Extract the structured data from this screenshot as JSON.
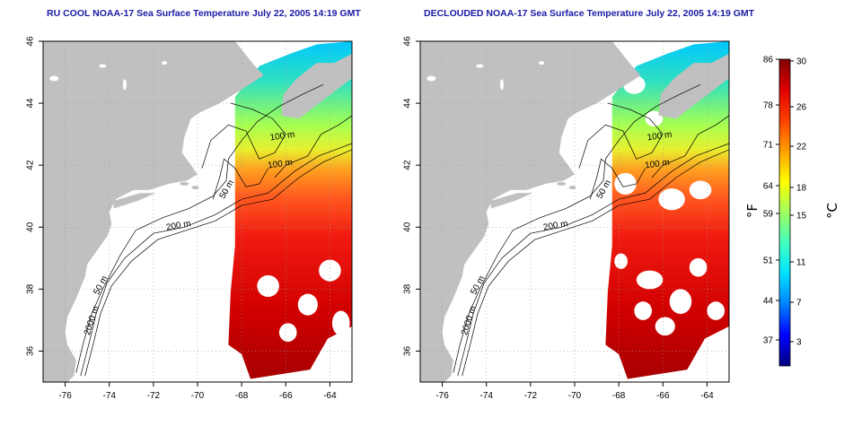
{
  "panels": [
    {
      "title": "RU COOL NOAA-17 Sea Surface Temperature July 22, 2005 14:19 GMT",
      "contour_labels": [
        "100 m",
        "100 m",
        "50 m",
        "200 m",
        "50 m",
        "2000 m"
      ]
    },
    {
      "title": "DECLOUDED NOAA-17 Sea Surface Temperature July 22, 2005 14:19 GMT",
      "contour_labels": [
        "100 m",
        "100 m",
        "50 m",
        "200 m",
        "50 m",
        "2000 m"
      ]
    }
  ],
  "map_axes": {
    "x_ticks": [
      "-76",
      "-74",
      "-72",
      "-70",
      "-68",
      "-66",
      "-64"
    ],
    "y_ticks": [
      "36",
      "38",
      "40",
      "42",
      "44",
      "46"
    ],
    "lon_range": [
      -77,
      -63
    ],
    "lat_range": [
      35,
      46
    ],
    "grid": "dotted"
  },
  "colorbar": {
    "f_ticks": [
      "86",
      "78",
      "71",
      "64",
      "59",
      "51",
      "44",
      "37"
    ],
    "c_ticks": [
      "30",
      "26",
      "22",
      "18",
      "15",
      "11",
      "7",
      "3"
    ],
    "unit_f": "°F",
    "unit_c": "°C",
    "colors": [
      "#000080",
      "#0000ff",
      "#0080ff",
      "#00e0ff",
      "#40ffc0",
      "#a0ff60",
      "#ffff00",
      "#ffa000",
      "#ff4000",
      "#e00000",
      "#800000"
    ]
  },
  "colors": {
    "land": "#c0c0c0",
    "sea_no_data": "#ffffff",
    "title": "#1a1aa6"
  }
}
